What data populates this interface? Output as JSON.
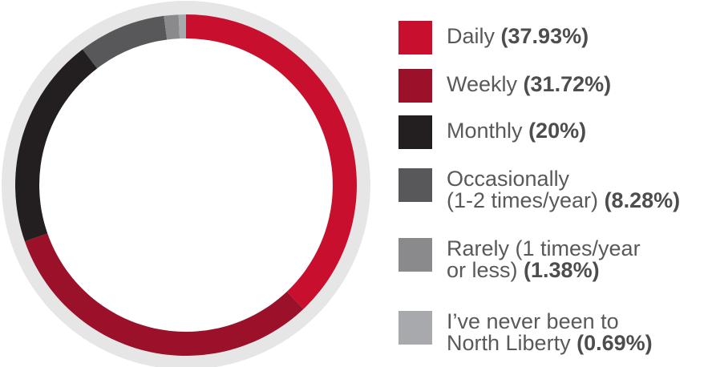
{
  "chart_data": {
    "type": "donut",
    "categories": [
      "Daily",
      "Weekly",
      "Monthly",
      "Occasionally\n(1-2 times/year)",
      "Rarely (1 times/year\nor less)",
      "I’ve never been to\nNorth Liberty"
    ],
    "values": [
      37.93,
      31.72,
      20,
      8.28,
      1.38,
      0.69
    ],
    "value_labels": [
      "(37.93%)",
      "(31.72%)",
      "(20%)",
      "(8.28%)",
      "(1.38%)",
      "(0.69%)"
    ],
    "colors": [
      "#c8102e",
      "#9b1129",
      "#231f20",
      "#58585a",
      "#8a8a8c",
      "#a7a9ac"
    ],
    "legend": "right"
  }
}
